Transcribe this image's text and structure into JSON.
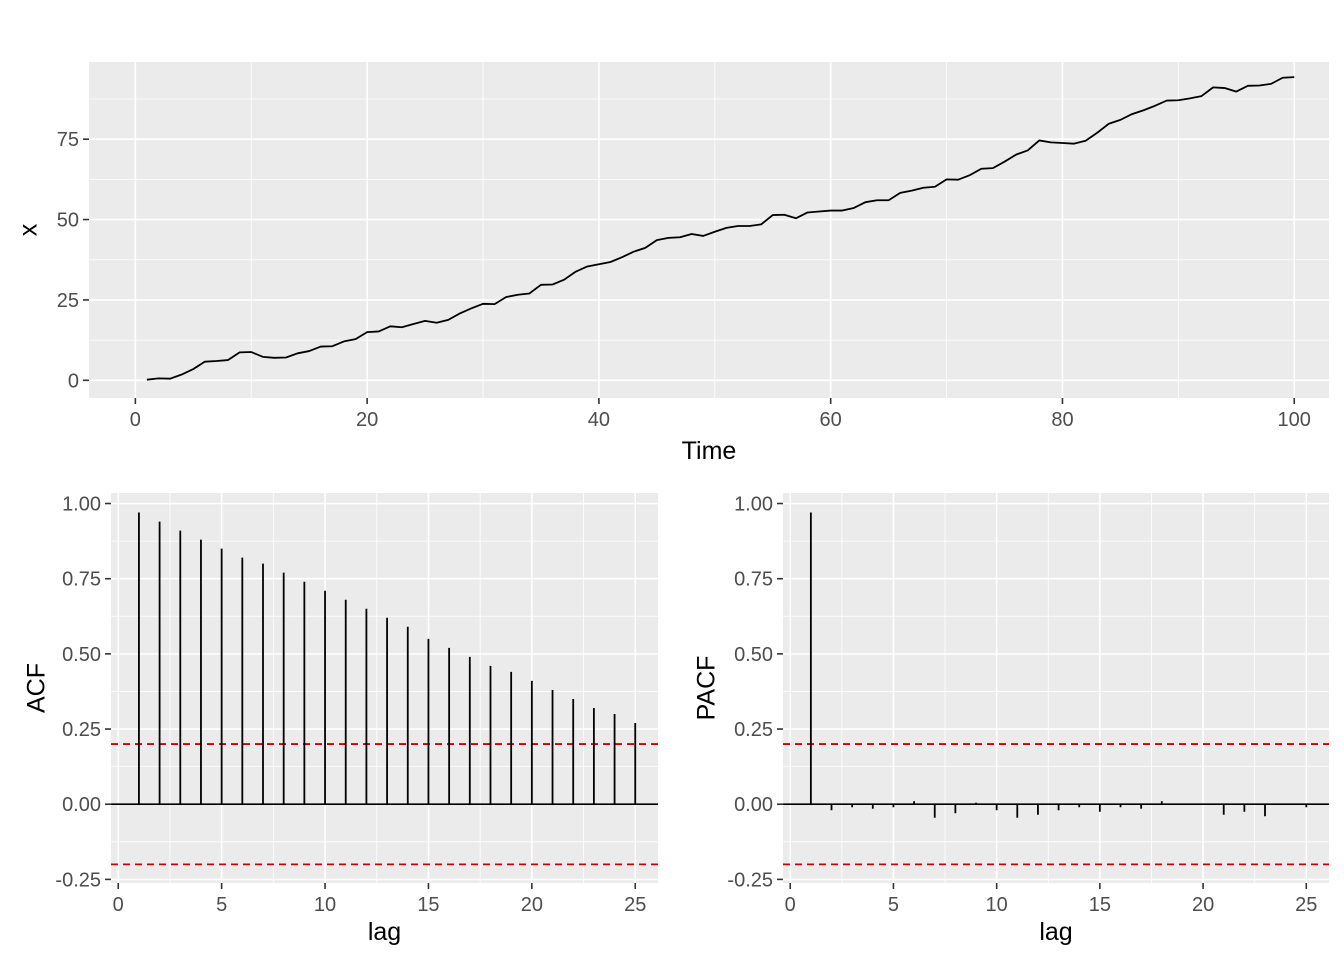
{
  "chart_data": [
    {
      "type": "line",
      "xlabel": "Time",
      "ylabel": "x",
      "xlim": [
        -4,
        103
      ],
      "ylim": [
        -5.5,
        99
      ],
      "x_ticks": [
        0,
        20,
        40,
        60,
        80,
        100
      ],
      "x_tick_labels": [
        "0",
        "20",
        "40",
        "60",
        "80",
        "100"
      ],
      "y_ticks": [
        0,
        25,
        50,
        75
      ],
      "y_tick_labels": [
        "0",
        "25",
        "50",
        "75"
      ],
      "grid": true,
      "line_color": "#000000",
      "x": [
        1,
        2,
        3,
        4,
        5,
        6,
        7,
        8,
        9,
        10,
        11,
        12,
        13,
        14,
        15,
        16,
        17,
        18,
        19,
        20,
        21,
        22,
        23,
        24,
        25,
        26,
        27,
        28,
        29,
        30,
        31,
        32,
        33,
        34,
        35,
        36,
        37,
        38,
        39,
        40,
        41,
        42,
        43,
        44,
        45,
        46,
        47,
        48,
        49,
        50,
        51,
        52,
        53,
        54,
        55,
        56,
        57,
        58,
        59,
        60,
        61,
        62,
        63,
        64,
        65,
        66,
        67,
        68,
        69,
        70,
        71,
        72,
        73,
        74,
        75,
        76,
        77,
        78,
        79,
        80,
        81,
        82,
        83,
        84,
        85,
        86,
        87,
        88,
        89,
        90,
        91,
        92,
        93,
        94,
        95,
        96,
        97,
        98,
        99,
        100
      ],
      "y": [
        0.2,
        0.6,
        0.5,
        1.8,
        3.5,
        5.8,
        6.0,
        6.3,
        8.7,
        8.8,
        7.3,
        7.0,
        7.1,
        8.4,
        9.1,
        10.5,
        10.6,
        12.1,
        12.8,
        15.0,
        15.2,
        16.8,
        16.5,
        17.5,
        18.5,
        17.9,
        18.8,
        20.8,
        22.4,
        23.8,
        23.7,
        25.9,
        26.6,
        27.0,
        29.7,
        29.8,
        31.3,
        33.8,
        35.4,
        36.1,
        36.8,
        38.3,
        40.0,
        41.2,
        43.6,
        44.3,
        44.5,
        45.5,
        44.9,
        46.2,
        47.4,
        48.0,
        48.0,
        48.5,
        51.4,
        51.5,
        50.4,
        52.2,
        52.5,
        52.8,
        52.8,
        53.6,
        55.4,
        56.0,
        56.0,
        58.3,
        59.0,
        59.9,
        60.2,
        62.5,
        62.4,
        63.8,
        65.8,
        66.0,
        68.0,
        70.2,
        71.5,
        74.6,
        74.0,
        73.8,
        73.6,
        74.5,
        77.0,
        79.8,
        81.0,
        82.8,
        84.0,
        85.4,
        87.0,
        87.1,
        87.7,
        88.4,
        91.1,
        90.9,
        89.8,
        91.6,
        91.7,
        92.2,
        94.1,
        94.3
      ]
    },
    {
      "type": "bar",
      "xlabel": "lag",
      "ylabel": "ACF",
      "xlim": [
        -0.35,
        26.1
      ],
      "ylim": [
        -0.262,
        1.035
      ],
      "x_ticks": [
        0,
        5,
        10,
        15,
        20,
        25
      ],
      "x_tick_labels": [
        "0",
        "5",
        "10",
        "15",
        "20",
        "25"
      ],
      "y_ticks": [
        -0.25,
        0,
        0.25,
        0.5,
        0.75,
        1.0
      ],
      "y_tick_labels": [
        "-0.25",
        "0.00",
        "0.25",
        "0.50",
        "0.75",
        "1.00"
      ],
      "grid": true,
      "lags": [
        1,
        2,
        3,
        4,
        5,
        6,
        7,
        8,
        9,
        10,
        11,
        12,
        13,
        14,
        15,
        16,
        17,
        18,
        19,
        20,
        21,
        22,
        23,
        24,
        25
      ],
      "values": [
        0.97,
        0.94,
        0.91,
        0.88,
        0.85,
        0.82,
        0.8,
        0.77,
        0.74,
        0.71,
        0.68,
        0.65,
        0.62,
        0.59,
        0.55,
        0.52,
        0.49,
        0.46,
        0.44,
        0.41,
        0.38,
        0.35,
        0.32,
        0.3,
        0.27
      ],
      "confidence_bounds": [
        0.2,
        -0.2
      ],
      "bound_color": "#cc0000",
      "bar_color": "#000000"
    },
    {
      "type": "bar",
      "xlabel": "lag",
      "ylabel": "PACF",
      "xlim": [
        -0.35,
        26.1
      ],
      "ylim": [
        -0.262,
        1.035
      ],
      "x_ticks": [
        0,
        5,
        10,
        15,
        20,
        25
      ],
      "x_tick_labels": [
        "0",
        "5",
        "10",
        "15",
        "20",
        "25"
      ],
      "y_ticks": [
        -0.25,
        0,
        0.25,
        0.5,
        0.75,
        1.0
      ],
      "y_tick_labels": [
        "-0.25",
        "0.00",
        "0.25",
        "0.50",
        "0.75",
        "1.00"
      ],
      "grid": true,
      "lags": [
        1,
        2,
        3,
        4,
        5,
        6,
        7,
        8,
        9,
        10,
        11,
        12,
        13,
        14,
        15,
        16,
        17,
        18,
        19,
        20,
        21,
        22,
        23,
        24,
        25
      ],
      "values": [
        0.97,
        -0.02,
        -0.01,
        -0.015,
        -0.01,
        0.01,
        -0.045,
        -0.03,
        0.005,
        -0.02,
        -0.045,
        -0.035,
        -0.02,
        -0.01,
        -0.025,
        -0.01,
        -0.015,
        0.01,
        0.0,
        0.0,
        -0.035,
        -0.025,
        -0.04,
        0.0,
        -0.01
      ],
      "confidence_bounds": [
        0.2,
        -0.2
      ],
      "bound_color": "#cc0000",
      "bar_color": "#000000"
    }
  ]
}
